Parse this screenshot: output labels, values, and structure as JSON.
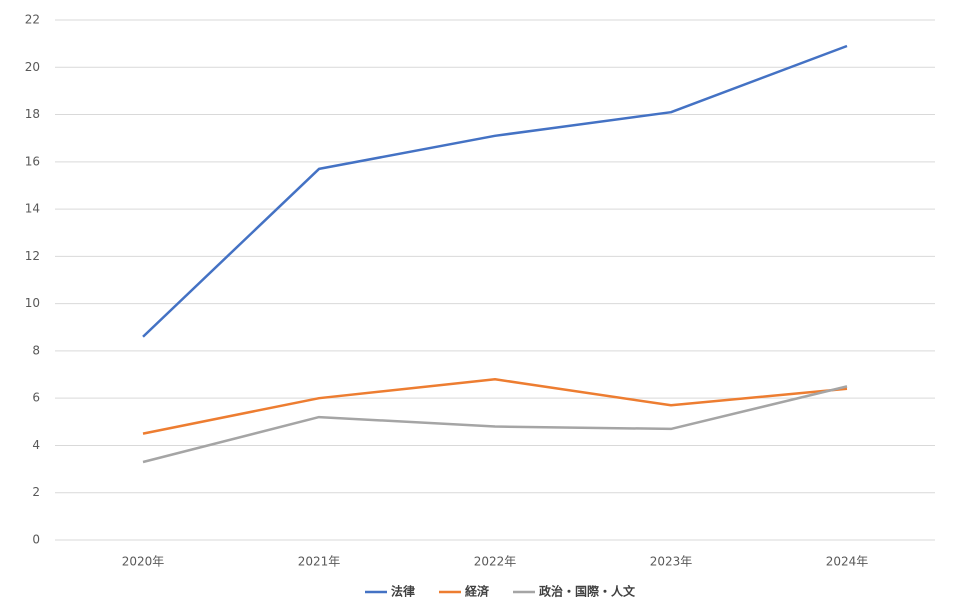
{
  "chart_data": {
    "type": "line",
    "categories": [
      "2020年",
      "2021年",
      "2022年",
      "2023年",
      "2024年"
    ],
    "series": [
      {
        "name": "法律",
        "color": "#4472c4",
        "values": [
          8.6,
          15.7,
          17.1,
          18.1,
          20.9
        ]
      },
      {
        "name": "経済",
        "color": "#ed7d31",
        "values": [
          4.5,
          6.0,
          6.8,
          5.7,
          6.4
        ]
      },
      {
        "name": "政治・国際・人文",
        "color": "#a5a5a5",
        "values": [
          3.3,
          5.2,
          4.8,
          4.7,
          6.5
        ]
      }
    ],
    "ylim": [
      0,
      22
    ],
    "yticks": [
      0,
      2,
      4,
      6,
      8,
      10,
      12,
      14,
      16,
      18,
      20,
      22
    ],
    "grid": true,
    "legend": "bottom"
  }
}
